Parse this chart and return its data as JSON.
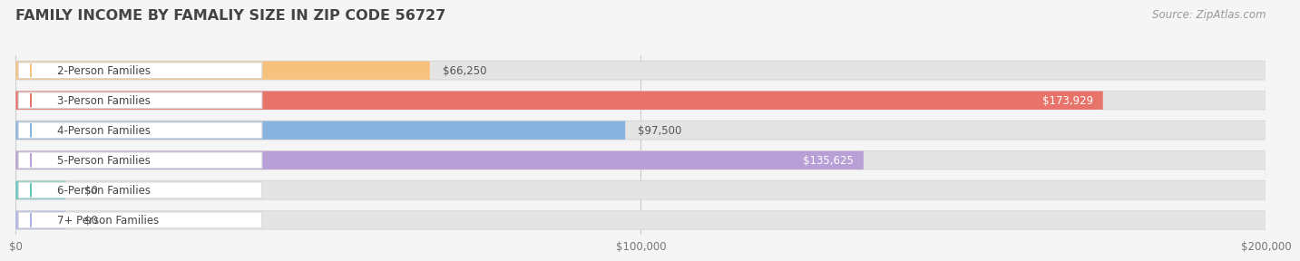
{
  "title": "FAMILY INCOME BY FAMALIY SIZE IN ZIP CODE 56727",
  "source": "Source: ZipAtlas.com",
  "categories": [
    "2-Person Families",
    "3-Person Families",
    "4-Person Families",
    "5-Person Families",
    "6-Person Families",
    "7+ Person Families"
  ],
  "values": [
    66250,
    173929,
    97500,
    135625,
    0,
    0
  ],
  "bar_colors": [
    "#f7c27e",
    "#e8736a",
    "#8ab4e0",
    "#b89fd5",
    "#5ec8bc",
    "#aab4e8"
  ],
  "value_label_colors": [
    "#555555",
    "#ffffff",
    "#555555",
    "#ffffff",
    "#555555",
    "#555555"
  ],
  "value_inside": [
    false,
    true,
    false,
    true,
    false,
    false
  ],
  "xmax": 200000,
  "xtick_values": [
    0,
    100000,
    200000
  ],
  "xtick_labels": [
    "$0",
    "$100,000",
    "$200,000"
  ],
  "background_color": "#f5f5f5",
  "bar_bg_color": "#e4e4e4",
  "title_fontsize": 11.5,
  "source_fontsize": 8.5,
  "category_fontsize": 8.5,
  "value_fontsize": 8.5,
  "bar_height": 0.6,
  "small_bar_values": [
    0,
    0
  ],
  "small_bar_indices": [
    4,
    5
  ]
}
